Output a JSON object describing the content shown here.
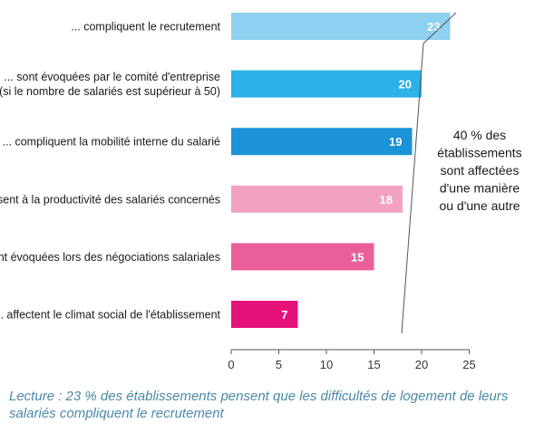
{
  "chart_data": {
    "type": "bar",
    "orientation": "horizontal",
    "categories": [
      [
        "... compliquent le recrutement"
      ],
      [
        "... sont évoquées par le comité d'entreprise",
        "(si le nombre de salariés est supérieur à 50)"
      ],
      [
        "... compliquent la mobilité interne du salarié"
      ],
      [
        "... nuisent à la productivité des salariés concernés"
      ],
      [
        "... sont évoquées lors des négociations salariales"
      ],
      [
        "... affectent le climat social de l'établissement"
      ]
    ],
    "values": [
      23,
      20,
      19,
      18,
      15,
      7
    ],
    "colors": [
      "#8dd0ef",
      "#2cb2e6",
      "#1b93d6",
      "#f2a1c3",
      "#ea5f9a",
      "#e5127a"
    ],
    "xlim": [
      0,
      25
    ],
    "xticks": [
      0,
      5,
      10,
      15,
      20,
      25
    ],
    "xlabel": "",
    "ylabel": "",
    "title": "",
    "annotation": [
      "40 % des",
      "établissements",
      "sont affectées",
      "d'une manière",
      "ou d'une autre"
    ]
  },
  "caption": "Lecture : 23 % des établissements pensent que les difficultés de logement de leurs salariés compliquent le recrutement"
}
